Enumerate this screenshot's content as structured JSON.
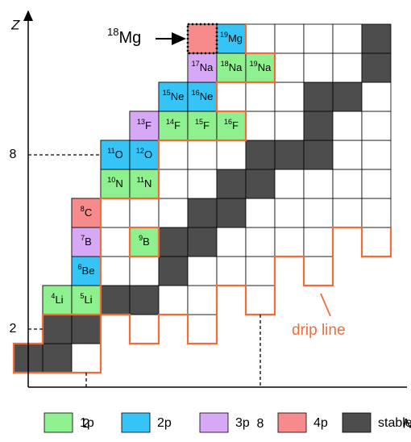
{
  "axes": {
    "x_label": "N",
    "y_label": "Z",
    "x_ticks": [
      2,
      8
    ],
    "y_ticks": [
      2,
      8
    ]
  },
  "rows": [
    {
      "Z": 1,
      "N": [
        0,
        1,
        2
      ],
      "stable": [
        0,
        1
      ]
    },
    {
      "Z": 2,
      "N": [
        1,
        2,
        4,
        6
      ],
      "stable": [
        1,
        2
      ]
    },
    {
      "Z": 3,
      "N": [
        1,
        2,
        3,
        4,
        5,
        6,
        8
      ],
      "stable": [
        3,
        4
      ]
    },
    {
      "Z": 4,
      "N": [
        2,
        3,
        4,
        5,
        6,
        7,
        8,
        10
      ],
      "stable": [
        5
      ]
    },
    {
      "Z": 5,
      "N": [
        2,
        3,
        4,
        5,
        6,
        7,
        8,
        9,
        10,
        12
      ],
      "stable": [
        5,
        6
      ]
    },
    {
      "Z": 6,
      "N": [
        2,
        3,
        4,
        5,
        6,
        7,
        8,
        9,
        10,
        11,
        12
      ],
      "stable": [
        6,
        7
      ]
    },
    {
      "Z": 7,
      "N": [
        3,
        4,
        5,
        6,
        7,
        8,
        9,
        10,
        11,
        12
      ],
      "stable": [
        7,
        8
      ]
    },
    {
      "Z": 8,
      "N": [
        3,
        4,
        5,
        6,
        7,
        8,
        9,
        10,
        11,
        12
      ],
      "stable": [
        8,
        9,
        10
      ]
    },
    {
      "Z": 9,
      "N": [
        4,
        5,
        6,
        7,
        8,
        9,
        10,
        11,
        12
      ],
      "stable": [
        10
      ]
    },
    {
      "Z": 10,
      "N": [
        5,
        6,
        7,
        8,
        9,
        10,
        11,
        12
      ],
      "stable": [
        10,
        11
      ]
    },
    {
      "Z": 11,
      "N": [
        6,
        7,
        8,
        9,
        10,
        11,
        12
      ],
      "stable": [
        12
      ]
    },
    {
      "Z": 12,
      "N": [
        6,
        7,
        8,
        9,
        10,
        11,
        12
      ],
      "stable": [
        12
      ]
    }
  ],
  "nuclides": [
    {
      "mass": "4",
      "symbol": "Li",
      "Z": 3,
      "N": 1,
      "mode": "1p"
    },
    {
      "mass": "5",
      "symbol": "Li",
      "Z": 3,
      "N": 2,
      "mode": "1p"
    },
    {
      "mass": "6",
      "symbol": "Be",
      "Z": 4,
      "N": 2,
      "mode": "2p"
    },
    {
      "mass": "7",
      "symbol": "B",
      "Z": 5,
      "N": 2,
      "mode": "3p"
    },
    {
      "mass": "8",
      "symbol": "C",
      "Z": 6,
      "N": 2,
      "mode": "4p"
    },
    {
      "mass": "9",
      "symbol": "B",
      "Z": 5,
      "N": 4,
      "mode": "1p"
    },
    {
      "mass": "10",
      "symbol": "N",
      "Z": 7,
      "N": 3,
      "mode": "1p"
    },
    {
      "mass": "11",
      "symbol": "N",
      "Z": 7,
      "N": 4,
      "mode": "1p"
    },
    {
      "mass": "11",
      "symbol": "O",
      "Z": 8,
      "N": 3,
      "mode": "2p"
    },
    {
      "mass": "12",
      "symbol": "O",
      "Z": 8,
      "N": 4,
      "mode": "2p"
    },
    {
      "mass": "13",
      "symbol": "F",
      "Z": 9,
      "N": 4,
      "mode": "3p"
    },
    {
      "mass": "14",
      "symbol": "F",
      "Z": 9,
      "N": 5,
      "mode": "1p"
    },
    {
      "mass": "15",
      "symbol": "F",
      "Z": 9,
      "N": 6,
      "mode": "1p"
    },
    {
      "mass": "16",
      "symbol": "F",
      "Z": 9,
      "N": 7,
      "mode": "1p"
    },
    {
      "mass": "15",
      "symbol": "Ne",
      "Z": 10,
      "N": 5,
      "mode": "2p"
    },
    {
      "mass": "16",
      "symbol": "Ne",
      "Z": 10,
      "N": 6,
      "mode": "2p"
    },
    {
      "mass": "17",
      "symbol": "Na",
      "Z": 11,
      "N": 6,
      "mode": "3p"
    },
    {
      "mass": "18",
      "symbol": "Na",
      "Z": 11,
      "N": 7,
      "mode": "1p"
    },
    {
      "mass": "19",
      "symbol": "Na",
      "Z": 11,
      "N": 8,
      "mode": "1p"
    },
    {
      "mass": "19",
      "symbol": "Mg",
      "Z": 12,
      "N": 7,
      "mode": "2p"
    },
    {
      "Z": 12,
      "N": 6,
      "mode": "4p",
      "highlight": true
    }
  ],
  "annotation": {
    "mass": "18",
    "symbol": "Mg"
  },
  "drip_line_label": "drip line",
  "legend": [
    {
      "label": "1p",
      "color": "#8ef08e"
    },
    {
      "label": "2p",
      "color": "#35c4f5"
    },
    {
      "label": "3p",
      "color": "#d7a8f5"
    },
    {
      "label": "4p",
      "color": "#f78b8b"
    },
    {
      "label": "stable",
      "color": "#4d4d4d"
    }
  ]
}
